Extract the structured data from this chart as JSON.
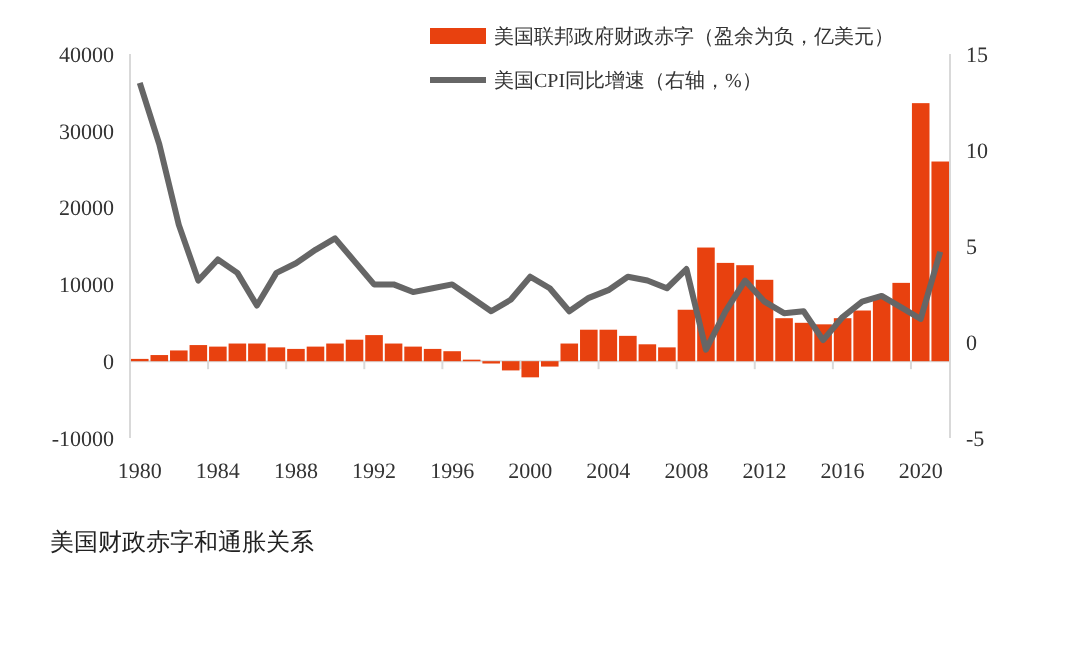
{
  "chart_data": {
    "type": "bar",
    "categories": [
      "1980",
      null,
      null,
      null,
      "1984",
      null,
      null,
      null,
      "1988",
      null,
      null,
      null,
      "1992",
      null,
      null,
      null,
      "1996",
      null,
      null,
      null,
      "2000",
      null,
      null,
      null,
      "2004",
      null,
      null,
      null,
      "2008",
      null,
      null,
      null,
      "2012",
      null,
      null,
      null,
      "2016",
      null,
      null,
      null,
      "2020",
      null
    ],
    "series": [
      {
        "name": "美国联邦政府财政赤字（盈余为负，亿美元）",
        "color": "#e8410f",
        "values": [
          300,
          800,
          1400,
          2100,
          1900,
          2300,
          2300,
          1800,
          1600,
          1900,
          2300,
          2800,
          3400,
          2300,
          1900,
          1600,
          1300,
          200,
          -300,
          -1200,
          -2100,
          -700,
          2300,
          4100,
          4100,
          3300,
          2200,
          1800,
          6700,
          14800,
          12800,
          12500,
          10600,
          5600,
          5000,
          4800,
          5600,
          6600,
          8200,
          10200,
          33600,
          26000
        ]
      },
      {
        "name": "美国CPI同比增速（右轴，%）",
        "type": "line",
        "axis": "y2",
        "color": "#666666",
        "values": [
          13.5,
          10.3,
          6.1,
          3.2,
          4.3,
          3.6,
          1.9,
          3.6,
          4.1,
          4.8,
          5.4,
          4.2,
          3.0,
          3.0,
          2.6,
          2.8,
          3.0,
          2.3,
          1.6,
          2.2,
          3.4,
          2.8,
          1.6,
          2.3,
          2.7,
          3.4,
          3.2,
          2.8,
          3.8,
          -0.4,
          1.6,
          3.2,
          2.1,
          1.5,
          1.6,
          0.1,
          1.3,
          2.1,
          2.4,
          1.8,
          1.2,
          4.7
        ]
      }
    ],
    "ylim": [
      -10000,
      40000
    ],
    "yticks": [
      -10000,
      0,
      10000,
      20000,
      30000,
      40000
    ],
    "y2lim": [
      -5,
      15
    ],
    "y2ticks": [
      -5,
      0,
      5,
      10,
      15
    ],
    "legend": "top",
    "marker": "none",
    "line_style": "solid",
    "annotations": [
      "美国财政赤字和通胀关系"
    ]
  }
}
